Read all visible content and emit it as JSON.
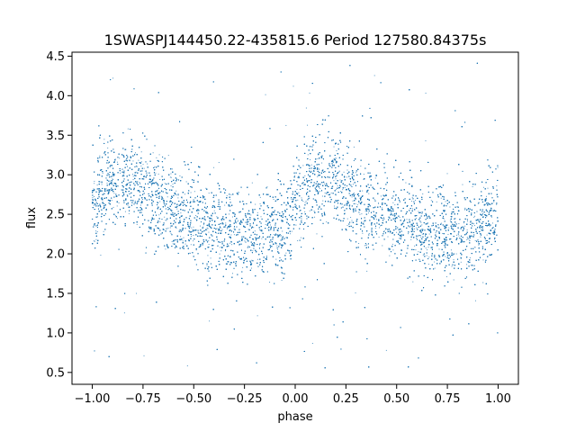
{
  "chart_data": {
    "type": "scatter",
    "title": "1SWASPJ144450.22-435815.6 Period 127580.84375s",
    "xlabel": "phase",
    "ylabel": "flux",
    "xlim": [
      -1.1,
      1.1
    ],
    "ylim": [
      0.35,
      4.55
    ],
    "xticks": [
      -1.0,
      -0.75,
      -0.5,
      -0.25,
      0.0,
      0.25,
      0.5,
      0.75,
      1.0
    ],
    "xtick_labels": [
      "−1.00",
      "−0.75",
      "−0.50",
      "−0.25",
      "0.00",
      "0.25",
      "0.50",
      "0.75",
      "1.00"
    ],
    "yticks": [
      0.5,
      1.0,
      1.5,
      2.0,
      2.5,
      3.0,
      3.5,
      4.0,
      4.5
    ],
    "ytick_labels": [
      "0.5",
      "1.0",
      "1.5",
      "2.0",
      "2.5",
      "3.0",
      "3.5",
      "4.0",
      "4.5"
    ],
    "grid": false,
    "marker_color": "#1f77b4",
    "series": [
      {
        "trend": {
          "phase": [
            -1.0,
            -0.9,
            -0.8,
            -0.7,
            -0.6,
            -0.5,
            -0.4,
            -0.3,
            -0.2,
            -0.1,
            0.0,
            0.1,
            0.2,
            0.3,
            0.4,
            0.5,
            0.6,
            0.7,
            0.8,
            0.9,
            1.0
          ],
          "flux": [
            2.55,
            2.95,
            2.9,
            2.72,
            2.55,
            2.42,
            2.33,
            2.27,
            2.24,
            2.3,
            2.55,
            2.95,
            2.9,
            2.72,
            2.55,
            2.42,
            2.33,
            2.27,
            2.24,
            2.3,
            2.55
          ]
        },
        "scatter_width": 0.28,
        "outlier_range": [
          0.5,
          4.42
        ],
        "point_count": 20000
      }
    ]
  }
}
